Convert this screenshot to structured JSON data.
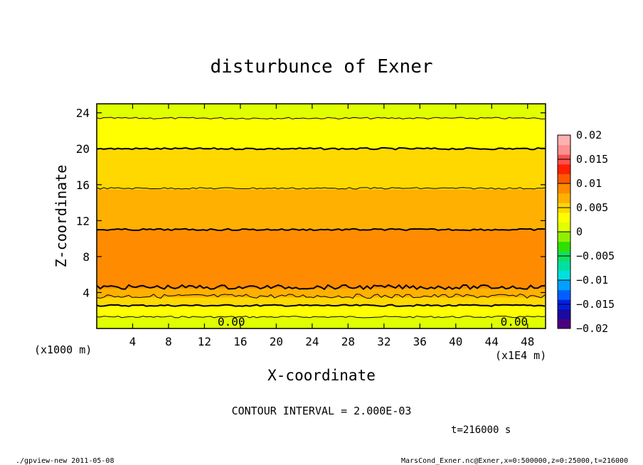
{
  "chart_data": {
    "type": "heatmap",
    "title": "disturbunce of Exner",
    "xlabel": "X-coordinate",
    "ylabel": "Z-coordinate",
    "x_unit_left": "(x1000 m)",
    "x_unit_right": "(x1E4 m)",
    "x_ticks": [
      "4",
      "8",
      "12",
      "16",
      "20",
      "24",
      "28",
      "32",
      "36",
      "40",
      "44",
      "48"
    ],
    "y_ticks": [
      "4",
      "8",
      "12",
      "16",
      "20",
      "24"
    ],
    "xlim": [
      0,
      50
    ],
    "ylim": [
      0,
      25
    ],
    "contour_interval_text": "CONTOUR INTERVAL = 2.000E-03",
    "contour_labels": [
      "0.00",
      "0.00"
    ],
    "time_text": "t=216000 s",
    "colorbar": {
      "ticks": [
        "0.02",
        "0.015",
        "0.01",
        "0.005",
        "0",
        "−0.005",
        "−0.01",
        "−0.015",
        "−0.02"
      ],
      "range": [
        -0.02,
        0.02
      ]
    },
    "profile": {
      "z": [
        0,
        1,
        2,
        3,
        4,
        5,
        6,
        8,
        10,
        12,
        14,
        16,
        18,
        20,
        22,
        23,
        24,
        25
      ],
      "value": [
        0.0005,
        0.0016,
        0.003,
        0.0048,
        0.0068,
        0.0088,
        0.0092,
        0.0095,
        0.0085,
        0.0075,
        0.0068,
        0.0058,
        0.005,
        0.004,
        0.0028,
        0.0022,
        0.0017,
        0.0014
      ]
    },
    "contour_levels": [
      0,
      0.002,
      0.004,
      0.006,
      0.008
    ]
  },
  "footer": {
    "left": "./gpview-new   2011-05-08",
    "right": "MarsCond_Exner.nc@Exner,x=0:500000,z=0:25000,t=216000"
  },
  "colors": {
    "palette": [
      "#4b0080",
      "#1a0aa0",
      "#0020e0",
      "#0060ff",
      "#00a0ff",
      "#00e0e0",
      "#00e0a0",
      "#10e060",
      "#30e000",
      "#90f000",
      "#e0ff00",
      "#ffff00",
      "#ffd800",
      "#ffb000",
      "#ff8c00",
      "#ff5a00",
      "#ff2000",
      "#ff5050",
      "#ff9090",
      "#ffb0b0"
    ]
  }
}
